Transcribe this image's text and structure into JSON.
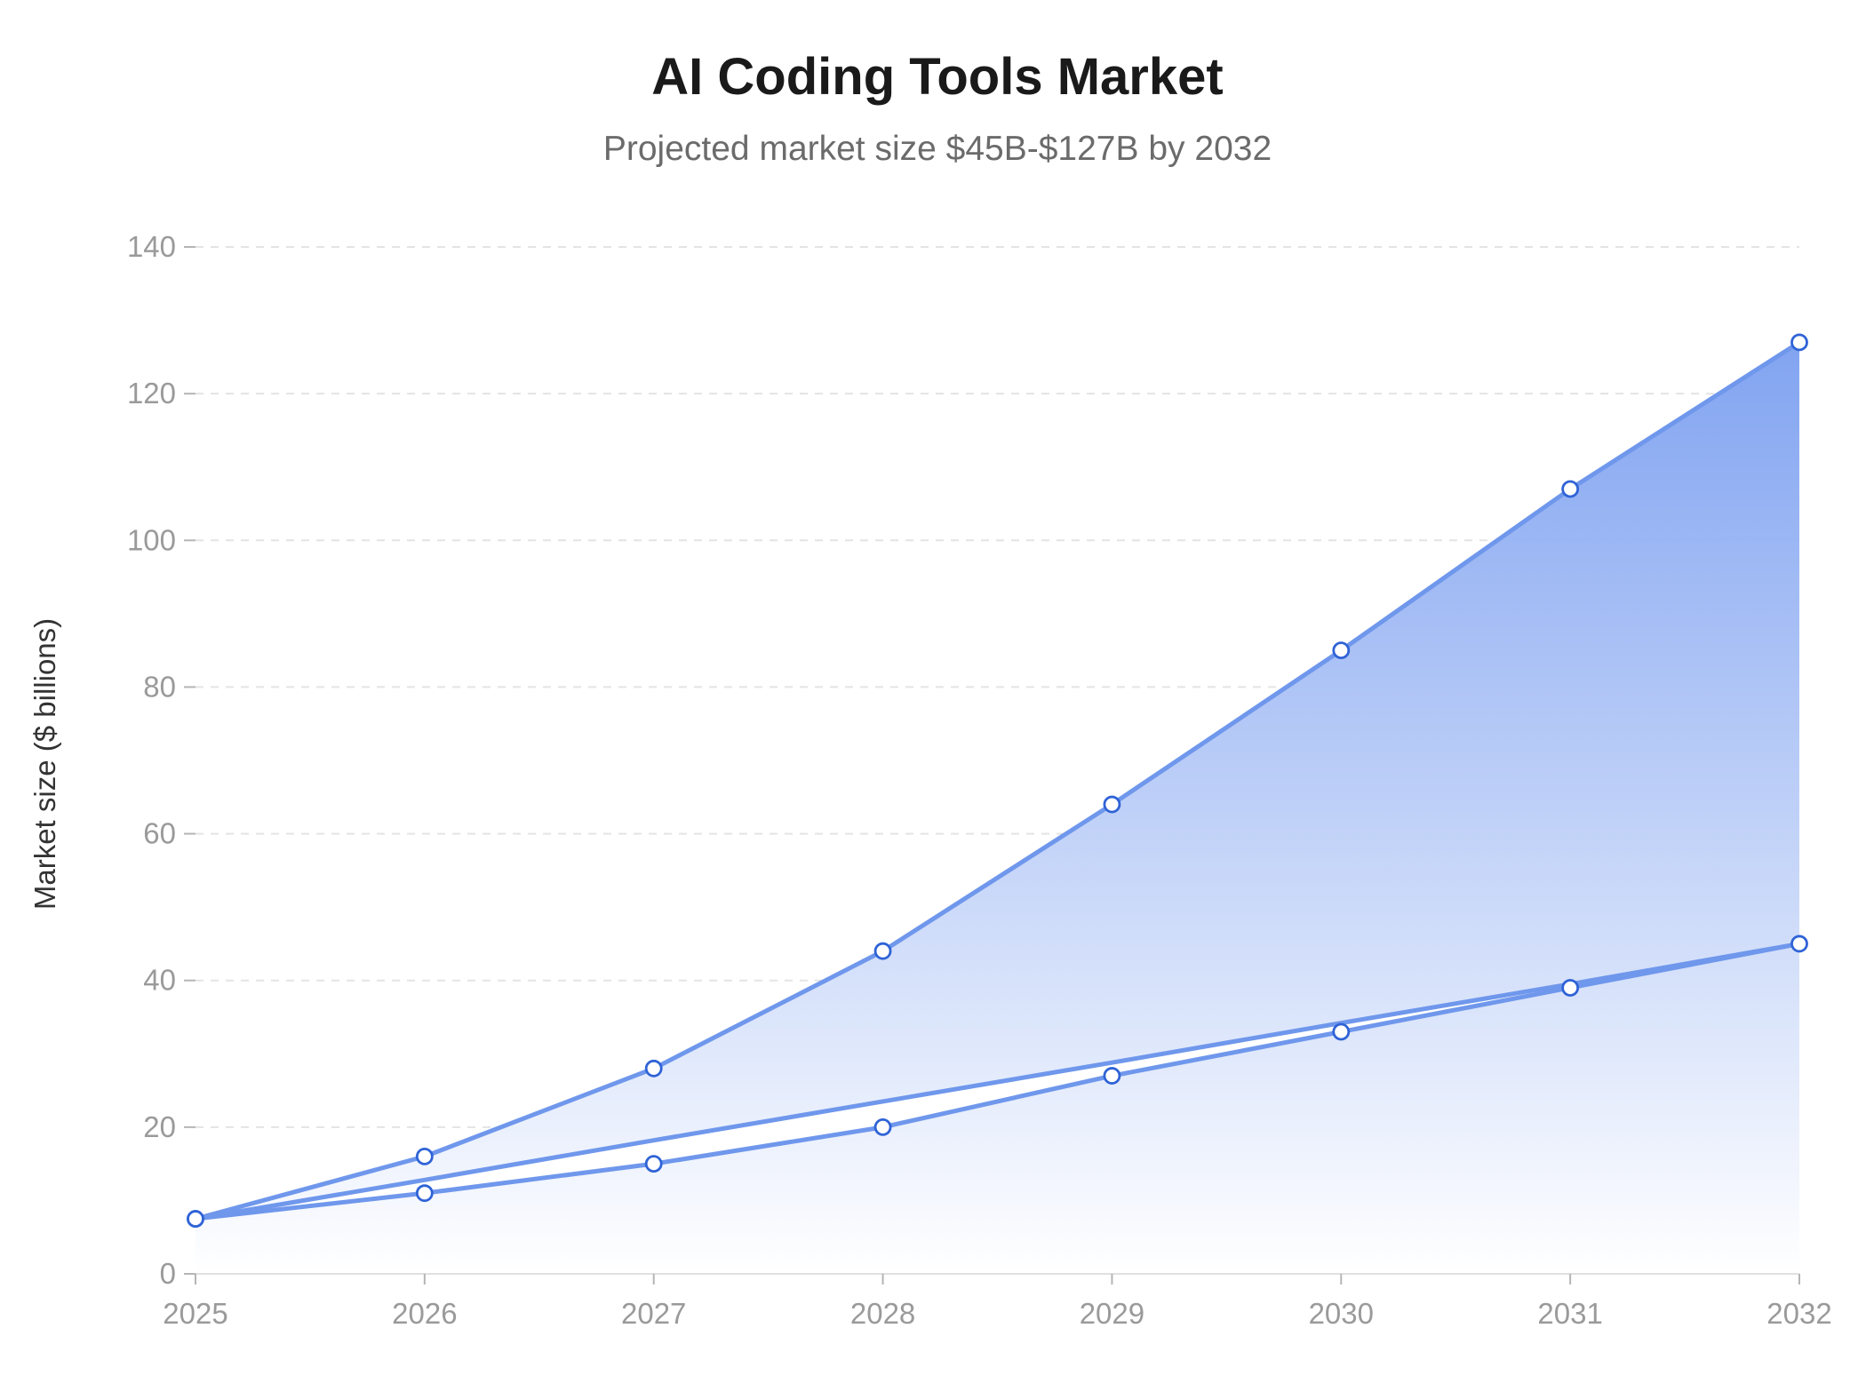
{
  "chart_data": {
    "type": "area",
    "title": "AI Coding Tools Market",
    "subtitle": "Projected market size $45B-$127B by 2032",
    "xlabel": "",
    "ylabel": "Market size ($ billions)",
    "categories": [
      "2025",
      "2026",
      "2027",
      "2028",
      "2029",
      "2030",
      "2031",
      "2032"
    ],
    "ylim": [
      0,
      140
    ],
    "yticks": [
      0,
      20,
      40,
      60,
      80,
      100,
      120,
      140
    ],
    "grid": true,
    "legend": "none",
    "series": [
      {
        "values": [
          7.5,
          16,
          28,
          44,
          64,
          85,
          107,
          127
        ]
      },
      {
        "values": [
          7.5,
          11,
          15,
          20,
          27,
          33,
          39,
          45
        ]
      },
      {
        "values": [
          7.5,
          12.8,
          18.2,
          23.5,
          28.8,
          34.2,
          39.5,
          45
        ]
      }
    ],
    "colors": {
      "line": "#6f97ec",
      "marker_stroke": "#2f63d6",
      "fill_top": "#7b9ff0",
      "fill_bottom": "#ffffff",
      "grid": "#e4e4e4"
    }
  }
}
